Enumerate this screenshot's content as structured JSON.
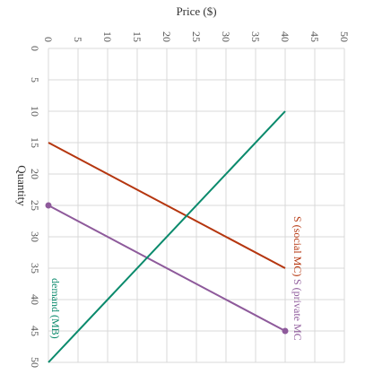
{
  "chart_data": {
    "type": "line",
    "orientation": "rotated-90-clockwise",
    "xlabel": "Price ($)",
    "ylabel": "Quantity",
    "xlim": [
      0,
      50
    ],
    "ylim": [
      0,
      50
    ],
    "x_ticks": [
      "0",
      "5",
      "10",
      "15",
      "20",
      "25",
      "30",
      "35",
      "40",
      "45",
      "50"
    ],
    "y_ticks": [
      "0",
      "5",
      "10",
      "15",
      "20",
      "25",
      "30",
      "35",
      "40",
      "45",
      "50"
    ],
    "grid": true,
    "series": [
      {
        "name": "S (social MC)",
        "color": "#b5360f",
        "points": [
          {
            "price": 0,
            "quantity": 15
          },
          {
            "price": 40,
            "quantity": 35
          }
        ],
        "markers": false
      },
      {
        "name": "S (private MC",
        "color": "#8e5a9b",
        "points": [
          {
            "price": 0,
            "quantity": 25
          },
          {
            "price": 40,
            "quantity": 45
          }
        ],
        "markers": true
      },
      {
        "name": "demand (MB)",
        "color": "#0a8a6c",
        "points": [
          {
            "price": 40,
            "quantity": 10
          },
          {
            "price": 0,
            "quantity": 50
          }
        ],
        "markers": false
      }
    ]
  }
}
